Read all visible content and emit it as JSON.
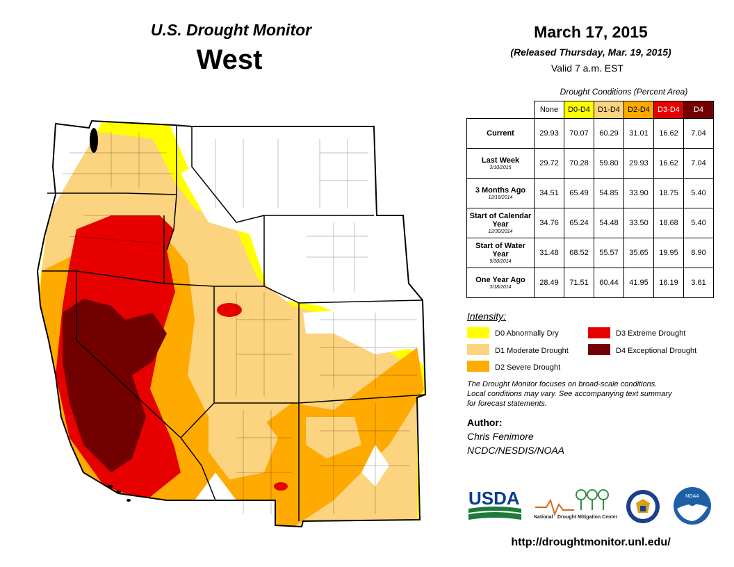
{
  "header": {
    "subtitle": "U.S. Drought Monitor",
    "region": "West",
    "date": "March 17, 2015",
    "released": "(Released Thursday, Mar. 19, 2015)",
    "valid": "Valid  7 a.m. EST"
  },
  "table": {
    "caption": "Drought Conditions (Percent Area)",
    "columns": [
      "None",
      "D0-D4",
      "D1-D4",
      "D2-D4",
      "D3-D4",
      "D4"
    ],
    "column_colors": [
      "#ffffff",
      "#ffff00",
      "#fcd37f",
      "#ffaa00",
      "#e60000",
      "#730000"
    ],
    "rows": [
      {
        "label": "Current",
        "sublabel": "",
        "values": [
          "29.93",
          "70.07",
          "60.29",
          "31.01",
          "16.62",
          "7.04"
        ]
      },
      {
        "label": "Last Week",
        "sublabel": "3/10/2015",
        "values": [
          "29.72",
          "70.28",
          "59.80",
          "29.93",
          "16.62",
          "7.04"
        ]
      },
      {
        "label": "3 Months Ago",
        "sublabel": "12/16/2014",
        "values": [
          "34.51",
          "65.49",
          "54.85",
          "33.90",
          "18.75",
          "5.40"
        ]
      },
      {
        "label": "Start of Calendar Year",
        "sublabel": "12/30/2014",
        "values": [
          "34.76",
          "65.24",
          "54.48",
          "33.50",
          "18.68",
          "5.40"
        ]
      },
      {
        "label": "Start of Water Year",
        "sublabel": "9/30/2014",
        "values": [
          "31.48",
          "68.52",
          "55.57",
          "35.65",
          "19.95",
          "8.90"
        ]
      },
      {
        "label": "One Year Ago",
        "sublabel": "3/18/2014",
        "values": [
          "28.49",
          "71.51",
          "60.44",
          "41.95",
          "16.19",
          "3.61"
        ]
      }
    ]
  },
  "legend": {
    "title": "Intensity:",
    "items": [
      {
        "label": "D0 Abnormally Dry",
        "color": "#ffff00"
      },
      {
        "label": "D1 Moderate Drought",
        "color": "#fcd37f"
      },
      {
        "label": "D2 Severe Drought",
        "color": "#ffaa00"
      },
      {
        "label": "D3 Extreme Drought",
        "color": "#e60000"
      },
      {
        "label": "D4 Exceptional Drought",
        "color": "#730000"
      }
    ]
  },
  "note": {
    "line1": "The Drought Monitor focuses on broad-scale conditions.",
    "line2": "Local conditions may vary. See accompanying text summary",
    "line3": "for forecast statements."
  },
  "author": {
    "heading": "Author:",
    "name": "Chris Fenimore",
    "org": "NCDC/NESDIS/NOAA"
  },
  "logos": {
    "usda": "USDA",
    "ndmc_line1": "National",
    "ndmc_line2": "Drought Mitigation Center",
    "noaa": "NOAA"
  },
  "url": "http://droughtmonitor.unl.edu/"
}
